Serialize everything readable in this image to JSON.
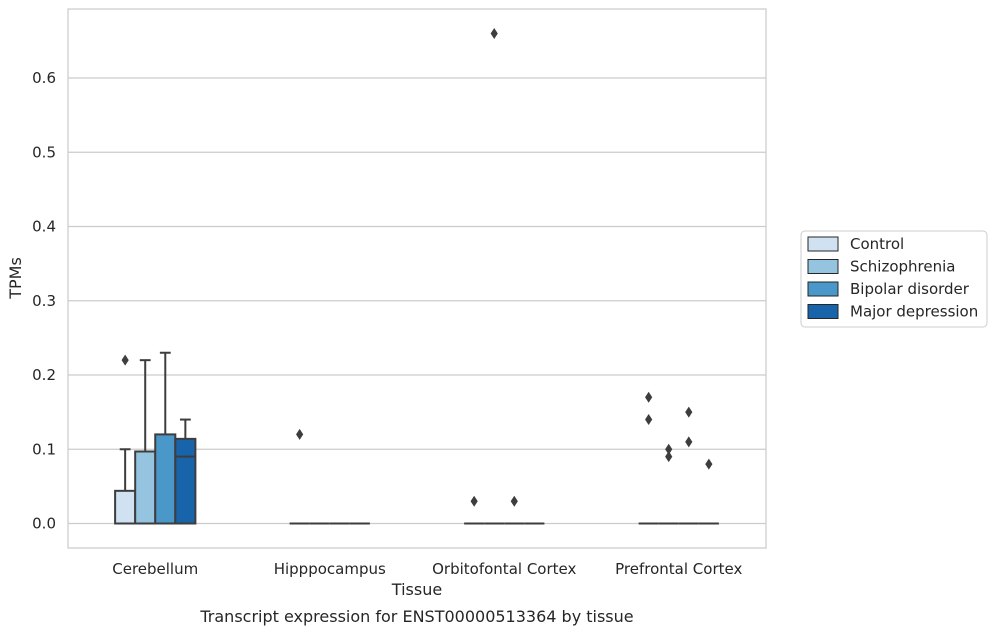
{
  "chart_data": {
    "type": "box",
    "title": "",
    "caption": "Transcript expression for ENST00000513364 by tissue",
    "xlabel": "Tissue",
    "ylabel": "TPMs",
    "ylim": [
      -0.033,
      0.693
    ],
    "yticks": [
      0.0,
      0.1,
      0.2,
      0.3,
      0.4,
      0.5,
      0.6
    ],
    "ytick_labels": [
      "0.0",
      "0.1",
      "0.2",
      "0.3",
      "0.4",
      "0.5",
      "0.6"
    ],
    "grid": "horizontal",
    "legend_position": "right",
    "categories": [
      "Cerebellum",
      "Hipppocampus",
      "Orbitofontal Cortex",
      "Prefrontal Cortex"
    ],
    "series": [
      {
        "name": "Control",
        "color": "#d0e1f2",
        "boxes": [
          {
            "q1": 0.0,
            "median": 0.0,
            "q3": 0.044,
            "whisker_low": 0.0,
            "whisker_high": 0.1,
            "outliers": [
              0.22
            ]
          },
          {
            "q1": 0.0,
            "median": 0.0,
            "q3": 0.0,
            "whisker_low": 0.0,
            "whisker_high": 0.0,
            "outliers": [
              0.12
            ]
          },
          {
            "q1": 0.0,
            "median": 0.0,
            "q3": 0.0,
            "whisker_low": 0.0,
            "whisker_high": 0.0,
            "outliers": [
              0.03
            ]
          },
          {
            "q1": 0.0,
            "median": 0.0,
            "q3": 0.0,
            "whisker_low": 0.0,
            "whisker_high": 0.0,
            "outliers": [
              0.17,
              0.14
            ]
          }
        ]
      },
      {
        "name": "Schizophrenia",
        "color": "#94c4df",
        "boxes": [
          {
            "q1": 0.0,
            "median": 0.0,
            "q3": 0.097,
            "whisker_low": 0.0,
            "whisker_high": 0.22,
            "outliers": []
          },
          {
            "q1": 0.0,
            "median": 0.0,
            "q3": 0.0,
            "whisker_low": 0.0,
            "whisker_high": 0.0,
            "outliers": []
          },
          {
            "q1": 0.0,
            "median": 0.0,
            "q3": 0.0,
            "whisker_low": 0.0,
            "whisker_high": 0.0,
            "outliers": [
              0.66
            ]
          },
          {
            "q1": 0.0,
            "median": 0.0,
            "q3": 0.0,
            "whisker_low": 0.0,
            "whisker_high": 0.0,
            "outliers": [
              0.1,
              0.09
            ]
          }
        ]
      },
      {
        "name": "Bipolar disorder",
        "color": "#4a98c9",
        "boxes": [
          {
            "q1": 0.0,
            "median": 0.0,
            "q3": 0.12,
            "whisker_low": 0.0,
            "whisker_high": 0.23,
            "outliers": []
          },
          {
            "q1": 0.0,
            "median": 0.0,
            "q3": 0.0,
            "whisker_low": 0.0,
            "whisker_high": 0.0,
            "outliers": []
          },
          {
            "q1": 0.0,
            "median": 0.0,
            "q3": 0.0,
            "whisker_low": 0.0,
            "whisker_high": 0.0,
            "outliers": [
              0.03
            ]
          },
          {
            "q1": 0.0,
            "median": 0.0,
            "q3": 0.0,
            "whisker_low": 0.0,
            "whisker_high": 0.0,
            "outliers": [
              0.15,
              0.11
            ]
          }
        ]
      },
      {
        "name": "Major depression",
        "color": "#1764ab",
        "boxes": [
          {
            "q1": 0.0,
            "median": 0.09,
            "q3": 0.114,
            "whisker_low": 0.0,
            "whisker_high": 0.14,
            "outliers": []
          },
          {
            "q1": 0.0,
            "median": 0.0,
            "q3": 0.0,
            "whisker_low": 0.0,
            "whisker_high": 0.0,
            "outliers": []
          },
          {
            "q1": 0.0,
            "median": 0.0,
            "q3": 0.0,
            "whisker_low": 0.0,
            "whisker_high": 0.0,
            "outliers": []
          },
          {
            "q1": 0.0,
            "median": 0.0,
            "q3": 0.0,
            "whisker_low": 0.0,
            "whisker_high": 0.0,
            "outliers": [
              0.08
            ]
          }
        ]
      }
    ]
  }
}
